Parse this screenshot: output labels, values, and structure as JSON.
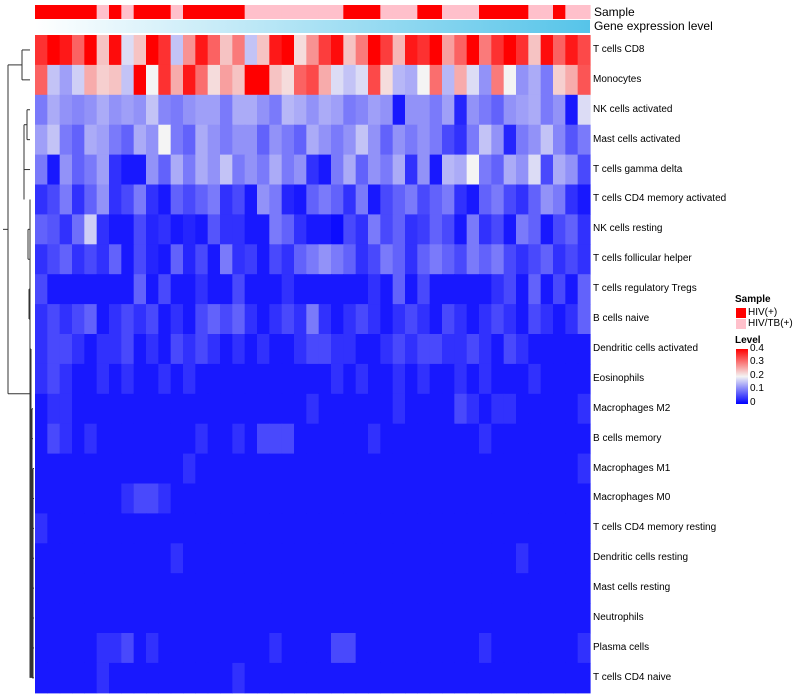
{
  "chart_data": {
    "type": "heatmap",
    "title": "",
    "annotations": {
      "sample_label": "Sample",
      "expression_label": "Gene expression level"
    },
    "rows": [
      "T cells CD8",
      "Monocytes",
      "NK cells activated",
      "Mast cells activated",
      "T cells gamma delta",
      "T cells CD4 memory activated",
      "NK cells resting",
      "T cells follicular helper",
      "T cells regulatory  Tregs",
      "B cells naive",
      "Dendritic cells activated",
      "Eosinophils",
      "Macrophages M2",
      "B cells memory",
      "Macrophages M1",
      "Macrophages M0",
      "T cells CD4 memory resting",
      "Dendritic cells resting",
      "Mast cells resting",
      "Neutrophils",
      "Plasma cells",
      "T cells CD4 naive"
    ],
    "sample_groups": [
      "HIV(+)",
      "HIV(+)",
      "HIV(+)",
      "HIV(+)",
      "HIV(+)",
      "HIV/TB(+)",
      "HIV(+)",
      "HIV/TB(+)",
      "HIV(+)",
      "HIV(+)",
      "HIV(+)",
      "HIV/TB(+)",
      "HIV(+)",
      "HIV(+)",
      "HIV(+)",
      "HIV(+)",
      "HIV(+)",
      "HIV/TB(+)",
      "HIV/TB(+)",
      "HIV/TB(+)",
      "HIV/TB(+)",
      "HIV/TB(+)",
      "HIV/TB(+)",
      "HIV/TB(+)",
      "HIV/TB(+)",
      "HIV(+)",
      "HIV(+)",
      "HIV(+)",
      "HIV/TB(+)",
      "HIV/TB(+)",
      "HIV/TB(+)",
      "HIV(+)",
      "HIV(+)",
      "HIV/TB(+)",
      "HIV/TB(+)",
      "HIV/TB(+)",
      "HIV(+)",
      "HIV(+)",
      "HIV(+)",
      "HIV(+)",
      "HIV/TB(+)",
      "HIV/TB(+)",
      "HIV(+)",
      "HIV/TB(+)",
      "HIV/TB(+)"
    ],
    "values": [
      [
        0.36,
        0.41,
        0.38,
        0.32,
        0.4,
        0.24,
        0.39,
        0.18,
        0.24,
        0.42,
        0.36,
        0.16,
        0.28,
        0.38,
        0.32,
        0.24,
        0.3,
        0.16,
        0.24,
        0.38,
        0.4,
        0.22,
        0.28,
        0.35,
        0.39,
        0.24,
        0.3,
        0.4,
        0.35,
        0.25,
        0.38,
        0.36,
        0.4,
        0.27,
        0.32,
        0.4,
        0.3,
        0.36,
        0.4,
        0.36,
        0.24,
        0.39,
        0.32,
        0.38,
        0.34
      ],
      [
        0.32,
        0.16,
        0.13,
        0.17,
        0.26,
        0.23,
        0.24,
        0.16,
        0.41,
        0.2,
        0.36,
        0.26,
        0.38,
        0.31,
        0.22,
        0.27,
        0.24,
        0.44,
        0.42,
        0.24,
        0.22,
        0.32,
        0.34,
        0.26,
        0.18,
        0.16,
        0.18,
        0.34,
        0.22,
        0.15,
        0.14,
        0.2,
        0.31,
        0.15,
        0.26,
        0.18,
        0.12,
        0.3,
        0.2,
        0.12,
        0.14,
        0.1,
        0.23,
        0.26,
        0.33
      ],
      [
        0.1,
        0.14,
        0.12,
        0.11,
        0.12,
        0.14,
        0.12,
        0.13,
        0.12,
        0.16,
        0.11,
        0.1,
        0.12,
        0.13,
        0.13,
        0.1,
        0.14,
        0.14,
        0.12,
        0.1,
        0.15,
        0.14,
        0.12,
        0.14,
        0.13,
        0.1,
        0.11,
        0.13,
        0.12,
        0.02,
        0.12,
        0.12,
        0.1,
        0.13,
        0.03,
        0.12,
        0.1,
        0.08,
        0.12,
        0.13,
        0.14,
        0.1,
        0.12,
        0.02,
        0.18
      ],
      [
        0.13,
        0.16,
        0.1,
        0.08,
        0.14,
        0.13,
        0.1,
        0.08,
        0.14,
        0.12,
        0.2,
        0.1,
        0.08,
        0.14,
        0.12,
        0.1,
        0.12,
        0.12,
        0.08,
        0.12,
        0.1,
        0.08,
        0.14,
        0.12,
        0.1,
        0.12,
        0.16,
        0.12,
        0.08,
        0.12,
        0.1,
        0.12,
        0.1,
        0.06,
        0.04,
        0.1,
        0.16,
        0.12,
        0.03,
        0.1,
        0.12,
        0.16,
        0.11,
        0.07,
        0.1
      ],
      [
        0.1,
        0.02,
        0.12,
        0.08,
        0.1,
        0.13,
        0.04,
        0.02,
        0.02,
        0.12,
        0.08,
        0.14,
        0.1,
        0.14,
        0.12,
        0.16,
        0.1,
        0.12,
        0.1,
        0.14,
        0.1,
        0.12,
        0.04,
        0.02,
        0.1,
        0.14,
        0.08,
        0.12,
        0.1,
        0.14,
        0.04,
        0.12,
        0.02,
        0.15,
        0.14,
        0.2,
        0.1,
        0.08,
        0.14,
        0.12,
        0.18,
        0.06,
        0.14,
        0.12,
        0.06
      ],
      [
        0.04,
        0.06,
        0.1,
        0.04,
        0.08,
        0.12,
        0.04,
        0.06,
        0.1,
        0.04,
        0.02,
        0.08,
        0.06,
        0.08,
        0.1,
        0.04,
        0.06,
        0.02,
        0.12,
        0.1,
        0.03,
        0.02,
        0.08,
        0.1,
        0.08,
        0.04,
        0.1,
        0.02,
        0.06,
        0.08,
        0.1,
        0.06,
        0.08,
        0.1,
        0.04,
        0.02,
        0.08,
        0.1,
        0.06,
        0.04,
        0.08,
        0.12,
        0.1,
        0.04,
        0.02
      ],
      [
        0.08,
        0.07,
        0.04,
        0.09,
        0.17,
        0.04,
        0.02,
        0.02,
        0.06,
        0.03,
        0.04,
        0.02,
        0.03,
        0.02,
        0.07,
        0.04,
        0.04,
        0.02,
        0.02,
        0.1,
        0.08,
        0.04,
        0.02,
        0.02,
        0.01,
        0.06,
        0.04,
        0.1,
        0.06,
        0.08,
        0.04,
        0.05,
        0.08,
        0.06,
        0.02,
        0.1,
        0.04,
        0.06,
        0.02,
        0.1,
        0.08,
        0.02,
        0.06,
        0.08,
        0.04
      ],
      [
        0.04,
        0.06,
        0.08,
        0.04,
        0.06,
        0.04,
        0.08,
        0.02,
        0.06,
        0.03,
        0.02,
        0.08,
        0.03,
        0.06,
        0.02,
        0.1,
        0.04,
        0.05,
        0.02,
        0.06,
        0.04,
        0.08,
        0.1,
        0.12,
        0.1,
        0.08,
        0.04,
        0.06,
        0.1,
        0.08,
        0.04,
        0.08,
        0.1,
        0.08,
        0.06,
        0.1,
        0.08,
        0.1,
        0.06,
        0.04,
        0.06,
        0.08,
        0.04,
        0.06,
        0.04
      ],
      [
        0.06,
        0.02,
        0.02,
        0.02,
        0.02,
        0.02,
        0.02,
        0.02,
        0.08,
        0.02,
        0.06,
        0.02,
        0.02,
        0.04,
        0.02,
        0.02,
        0.06,
        0.02,
        0.02,
        0.02,
        0.04,
        0.02,
        0.02,
        0.02,
        0.02,
        0.02,
        0.02,
        0.04,
        0.02,
        0.08,
        0.02,
        0.06,
        0.02,
        0.02,
        0.02,
        0.02,
        0.02,
        0.04,
        0.06,
        0.02,
        0.08,
        0.02,
        0.06,
        0.02,
        0.08
      ],
      [
        0.04,
        0.06,
        0.04,
        0.06,
        0.08,
        0.02,
        0.04,
        0.06,
        0.04,
        0.06,
        0.02,
        0.04,
        0.02,
        0.06,
        0.08,
        0.06,
        0.08,
        0.04,
        0.02,
        0.04,
        0.06,
        0.04,
        0.1,
        0.04,
        0.02,
        0.04,
        0.06,
        0.04,
        0.02,
        0.04,
        0.06,
        0.04,
        0.02,
        0.06,
        0.04,
        0.02,
        0.04,
        0.06,
        0.04,
        0.02,
        0.06,
        0.04,
        0.02,
        0.04,
        0.08
      ],
      [
        0.04,
        0.06,
        0.06,
        0.04,
        0.02,
        0.04,
        0.04,
        0.06,
        0.02,
        0.04,
        0.02,
        0.06,
        0.04,
        0.06,
        0.04,
        0.02,
        0.04,
        0.02,
        0.04,
        0.02,
        0.02,
        0.04,
        0.06,
        0.06,
        0.04,
        0.04,
        0.02,
        0.02,
        0.04,
        0.06,
        0.04,
        0.06,
        0.06,
        0.04,
        0.04,
        0.06,
        0.04,
        0.02,
        0.06,
        0.04,
        0.02,
        0.02,
        0.02,
        0.02,
        0.02
      ],
      [
        0.04,
        0.06,
        0.04,
        0.02,
        0.02,
        0.04,
        0.02,
        0.04,
        0.02,
        0.02,
        0.04,
        0.02,
        0.04,
        0.02,
        0.02,
        0.02,
        0.02,
        0.02,
        0.02,
        0.02,
        0.02,
        0.02,
        0.02,
        0.02,
        0.04,
        0.02,
        0.04,
        0.02,
        0.02,
        0.04,
        0.02,
        0.04,
        0.02,
        0.02,
        0.04,
        0.02,
        0.04,
        0.02,
        0.02,
        0.02,
        0.04,
        0.02,
        0.02,
        0.02,
        0.02
      ],
      [
        0.02,
        0.04,
        0.04,
        0.02,
        0.02,
        0.02,
        0.02,
        0.02,
        0.02,
        0.02,
        0.02,
        0.02,
        0.02,
        0.02,
        0.02,
        0.02,
        0.02,
        0.02,
        0.02,
        0.02,
        0.02,
        0.02,
        0.04,
        0.02,
        0.02,
        0.02,
        0.02,
        0.02,
        0.02,
        0.04,
        0.02,
        0.02,
        0.02,
        0.02,
        0.06,
        0.04,
        0.02,
        0.04,
        0.04,
        0.02,
        0.02,
        0.02,
        0.02,
        0.02,
        0.04
      ],
      [
        0.02,
        0.06,
        0.04,
        0.02,
        0.04,
        0.02,
        0.02,
        0.02,
        0.02,
        0.02,
        0.02,
        0.02,
        0.02,
        0.04,
        0.02,
        0.02,
        0.04,
        0.02,
        0.06,
        0.06,
        0.06,
        0.02,
        0.02,
        0.02,
        0.02,
        0.02,
        0.02,
        0.04,
        0.02,
        0.02,
        0.02,
        0.02,
        0.02,
        0.02,
        0.02,
        0.02,
        0.04,
        0.02,
        0.02,
        0.02,
        0.02,
        0.02,
        0.02,
        0.02,
        0.02
      ],
      [
        0.02,
        0.02,
        0.02,
        0.02,
        0.02,
        0.02,
        0.02,
        0.02,
        0.02,
        0.02,
        0.02,
        0.02,
        0.04,
        0.02,
        0.02,
        0.02,
        0.02,
        0.02,
        0.02,
        0.02,
        0.02,
        0.02,
        0.02,
        0.02,
        0.02,
        0.02,
        0.02,
        0.02,
        0.02,
        0.02,
        0.02,
        0.02,
        0.02,
        0.02,
        0.02,
        0.02,
        0.02,
        0.02,
        0.02,
        0.02,
        0.02,
        0.02,
        0.02,
        0.02,
        0.04
      ],
      [
        0.02,
        0.02,
        0.02,
        0.02,
        0.02,
        0.02,
        0.02,
        0.04,
        0.06,
        0.06,
        0.04,
        0.02,
        0.02,
        0.02,
        0.02,
        0.02,
        0.02,
        0.02,
        0.02,
        0.02,
        0.02,
        0.02,
        0.02,
        0.02,
        0.02,
        0.02,
        0.02,
        0.02,
        0.02,
        0.02,
        0.02,
        0.02,
        0.02,
        0.02,
        0.02,
        0.02,
        0.02,
        0.02,
        0.02,
        0.02,
        0.02,
        0.02,
        0.02,
        0.02,
        0.02
      ],
      [
        0.04,
        0.02,
        0.02,
        0.02,
        0.02,
        0.02,
        0.02,
        0.02,
        0.02,
        0.02,
        0.02,
        0.02,
        0.02,
        0.02,
        0.02,
        0.02,
        0.02,
        0.02,
        0.02,
        0.02,
        0.02,
        0.02,
        0.02,
        0.02,
        0.02,
        0.02,
        0.02,
        0.02,
        0.02,
        0.02,
        0.02,
        0.02,
        0.02,
        0.02,
        0.02,
        0.02,
        0.02,
        0.02,
        0.02,
        0.02,
        0.02,
        0.02,
        0.02,
        0.02,
        0.02
      ],
      [
        0.02,
        0.02,
        0.02,
        0.02,
        0.02,
        0.02,
        0.02,
        0.02,
        0.02,
        0.02,
        0.02,
        0.04,
        0.02,
        0.02,
        0.02,
        0.02,
        0.02,
        0.02,
        0.02,
        0.02,
        0.02,
        0.02,
        0.02,
        0.02,
        0.02,
        0.02,
        0.02,
        0.02,
        0.02,
        0.02,
        0.02,
        0.02,
        0.02,
        0.02,
        0.02,
        0.02,
        0.02,
        0.02,
        0.02,
        0.04,
        0.02,
        0.02,
        0.02,
        0.02,
        0.02
      ],
      [
        0.02,
        0.02,
        0.02,
        0.02,
        0.02,
        0.02,
        0.02,
        0.02,
        0.02,
        0.02,
        0.02,
        0.02,
        0.02,
        0.02,
        0.02,
        0.02,
        0.02,
        0.02,
        0.02,
        0.02,
        0.02,
        0.02,
        0.02,
        0.02,
        0.02,
        0.02,
        0.02,
        0.02,
        0.02,
        0.02,
        0.02,
        0.02,
        0.02,
        0.02,
        0.02,
        0.02,
        0.02,
        0.02,
        0.02,
        0.02,
        0.02,
        0.02,
        0.02,
        0.02,
        0.02
      ],
      [
        0.02,
        0.02,
        0.02,
        0.02,
        0.02,
        0.02,
        0.02,
        0.02,
        0.02,
        0.02,
        0.02,
        0.02,
        0.02,
        0.02,
        0.02,
        0.02,
        0.02,
        0.02,
        0.02,
        0.02,
        0.02,
        0.02,
        0.02,
        0.02,
        0.02,
        0.02,
        0.02,
        0.02,
        0.02,
        0.02,
        0.02,
        0.02,
        0.02,
        0.02,
        0.02,
        0.02,
        0.02,
        0.02,
        0.02,
        0.02,
        0.02,
        0.02,
        0.02,
        0.02,
        0.02
      ],
      [
        0.02,
        0.02,
        0.02,
        0.02,
        0.02,
        0.04,
        0.04,
        0.06,
        0.02,
        0.04,
        0.02,
        0.02,
        0.02,
        0.02,
        0.02,
        0.02,
        0.02,
        0.02,
        0.02,
        0.04,
        0.02,
        0.02,
        0.02,
        0.02,
        0.06,
        0.06,
        0.02,
        0.02,
        0.02,
        0.02,
        0.02,
        0.02,
        0.02,
        0.02,
        0.02,
        0.02,
        0.04,
        0.02,
        0.02,
        0.02,
        0.02,
        0.02,
        0.02,
        0.02,
        0.04
      ],
      [
        0.02,
        0.02,
        0.02,
        0.02,
        0.02,
        0.04,
        0.02,
        0.02,
        0.02,
        0.02,
        0.02,
        0.02,
        0.02,
        0.02,
        0.02,
        0.02,
        0.04,
        0.02,
        0.02,
        0.02,
        0.02,
        0.02,
        0.02,
        0.02,
        0.02,
        0.02,
        0.02,
        0.02,
        0.02,
        0.02,
        0.02,
        0.02,
        0.02,
        0.02,
        0.02,
        0.02,
        0.02,
        0.02,
        0.02,
        0.02,
        0.02,
        0.02,
        0.02,
        0.02,
        0.02
      ]
    ],
    "color_scale": {
      "min": 0,
      "mid": 0.2,
      "max": 0.4,
      "low_color": "#0000ff",
      "mid_color": "#f4f4f4",
      "high_color": "#ff0000"
    },
    "group_colors": {
      "HIV(+)": "#ff0000",
      "HIV/TB(+)": "#ffc0cb"
    },
    "expression_gradient": [
      "#ffffff",
      "#56c4e9"
    ],
    "legend": {
      "sample_title": "Sample",
      "sample_entries": [
        "HIV(+)",
        "HIV/TB(+)"
      ],
      "level_title": "Level",
      "level_ticks": [
        "0.4",
        "0.3",
        "0.2",
        "0.1",
        "0"
      ],
      "position": "right"
    }
  }
}
